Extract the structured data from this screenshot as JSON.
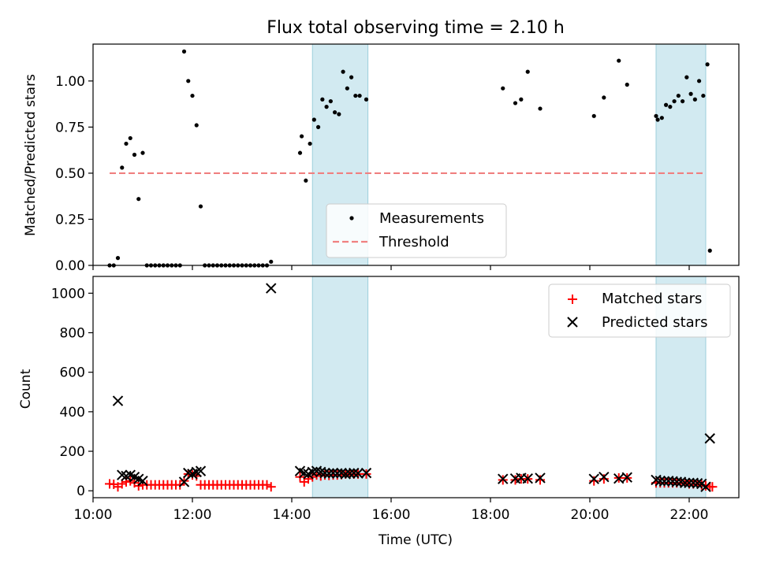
{
  "title": "Flux total observing time = 2.10 h",
  "chart_data": [
    {
      "type": "scatter",
      "ylabel": "Matched/Predicted stars",
      "xlabel": "",
      "xlim": [
        "10:00",
        "23:00"
      ],
      "ylim": [
        0,
        1.2
      ],
      "yticks": [
        0.0,
        0.25,
        0.5,
        0.75,
        1.0
      ],
      "ytick_labels": [
        "0.00",
        "0.25",
        "0.50",
        "0.75",
        "1.00"
      ],
      "grid": false,
      "legend": {
        "placement": "lower-center",
        "entries": [
          "Measurements",
          "Threshold"
        ]
      },
      "shaded_intervals": [
        [
          "14:25",
          "15:32"
        ],
        [
          "21:20",
          "22:20"
        ]
      ],
      "threshold": {
        "name": "Threshold",
        "value": 0.5,
        "x_start": "10:20",
        "x_end": "22:20",
        "color": "#f08080"
      },
      "series": [
        {
          "name": "Measurements",
          "color": "#000000",
          "points": [
            [
              "10:20",
              0.0
            ],
            [
              "10:25",
              0.0
            ],
            [
              "10:30",
              0.04
            ],
            [
              "10:35",
              0.53
            ],
            [
              "10:40",
              0.66
            ],
            [
              "10:45",
              0.69
            ],
            [
              "10:50",
              0.6
            ],
            [
              "10:55",
              0.36
            ],
            [
              "11:00",
              0.61
            ],
            [
              "11:05",
              0.0
            ],
            [
              "11:10",
              0.0
            ],
            [
              "11:15",
              0.0
            ],
            [
              "11:20",
              0.0
            ],
            [
              "11:25",
              0.0
            ],
            [
              "11:30",
              0.0
            ],
            [
              "11:35",
              0.0
            ],
            [
              "11:40",
              0.0
            ],
            [
              "11:45",
              0.0
            ],
            [
              "11:50",
              1.16
            ],
            [
              "11:55",
              1.0
            ],
            [
              "12:00",
              0.92
            ],
            [
              "12:05",
              0.76
            ],
            [
              "12:10",
              0.32
            ],
            [
              "12:15",
              0.0
            ],
            [
              "12:20",
              0.0
            ],
            [
              "12:25",
              0.0
            ],
            [
              "12:30",
              0.0
            ],
            [
              "12:35",
              0.0
            ],
            [
              "12:40",
              0.0
            ],
            [
              "12:45",
              0.0
            ],
            [
              "12:50",
              0.0
            ],
            [
              "12:55",
              0.0
            ],
            [
              "13:00",
              0.0
            ],
            [
              "13:05",
              0.0
            ],
            [
              "13:10",
              0.0
            ],
            [
              "13:15",
              0.0
            ],
            [
              "13:20",
              0.0
            ],
            [
              "13:25",
              0.0
            ],
            [
              "13:30",
              0.0
            ],
            [
              "13:35",
              0.02
            ],
            [
              "14:10",
              0.61
            ],
            [
              "14:12",
              0.7
            ],
            [
              "14:17",
              0.46
            ],
            [
              "14:22",
              0.66
            ],
            [
              "14:27",
              0.79
            ],
            [
              "14:32",
              0.75
            ],
            [
              "14:37",
              0.9
            ],
            [
              "14:42",
              0.86
            ],
            [
              "14:47",
              0.89
            ],
            [
              "14:52",
              0.83
            ],
            [
              "14:57",
              0.82
            ],
            [
              "15:02",
              1.05
            ],
            [
              "15:07",
              0.96
            ],
            [
              "15:12",
              1.02
            ],
            [
              "15:17",
              0.92
            ],
            [
              "15:22",
              0.92
            ],
            [
              "15:30",
              0.9
            ],
            [
              "18:15",
              0.96
            ],
            [
              "18:30",
              0.88
            ],
            [
              "18:37",
              0.9
            ],
            [
              "18:45",
              1.05
            ],
            [
              "19:00",
              0.85
            ],
            [
              "20:05",
              0.81
            ],
            [
              "20:17",
              0.91
            ],
            [
              "20:35",
              1.11
            ],
            [
              "20:45",
              0.98
            ],
            [
              "21:20",
              0.81
            ],
            [
              "21:22",
              0.79
            ],
            [
              "21:27",
              0.8
            ],
            [
              "21:32",
              0.87
            ],
            [
              "21:37",
              0.86
            ],
            [
              "21:42",
              0.89
            ],
            [
              "21:47",
              0.92
            ],
            [
              "21:52",
              0.89
            ],
            [
              "21:57",
              1.02
            ],
            [
              "22:02",
              0.93
            ],
            [
              "22:07",
              0.9
            ],
            [
              "22:12",
              1.0
            ],
            [
              "22:17",
              0.92
            ],
            [
              "22:22",
              1.09
            ],
            [
              "22:25",
              0.08
            ]
          ]
        }
      ]
    },
    {
      "type": "scatter",
      "ylabel": "Count",
      "xlabel": "Time (UTC)",
      "xlim": [
        "10:00",
        "23:00"
      ],
      "ylim": [
        -35,
        1085
      ],
      "yticks": [
        0,
        200,
        400,
        600,
        800,
        1000
      ],
      "ytick_labels": [
        "0",
        "200",
        "400",
        "600",
        "800",
        "1000"
      ],
      "xticks": [
        "10:00",
        "12:00",
        "14:00",
        "16:00",
        "18:00",
        "20:00",
        "22:00"
      ],
      "grid": false,
      "legend": {
        "placement": "top-right",
        "entries": [
          "Matched stars",
          "Predicted stars"
        ]
      },
      "shaded_intervals": [
        [
          "14:25",
          "15:32"
        ],
        [
          "21:20",
          "22:20"
        ]
      ],
      "series": [
        {
          "name": "Matched stars",
          "color": "#ff0000",
          "marker": "plus",
          "points": [
            [
              "10:20",
              35
            ],
            [
              "10:25",
              33
            ],
            [
              "10:30",
              20
            ],
            [
              "10:35",
              35
            ],
            [
              "10:40",
              45
            ],
            [
              "10:45",
              50
            ],
            [
              "10:50",
              40
            ],
            [
              "10:55",
              25
            ],
            [
              "11:00",
              30
            ],
            [
              "11:05",
              30
            ],
            [
              "11:10",
              30
            ],
            [
              "11:15",
              30
            ],
            [
              "11:20",
              30
            ],
            [
              "11:25",
              30
            ],
            [
              "11:30",
              30
            ],
            [
              "11:35",
              30
            ],
            [
              "11:40",
              30
            ],
            [
              "11:45",
              30
            ],
            [
              "11:50",
              50
            ],
            [
              "11:55",
              85
            ],
            [
              "12:00",
              80
            ],
            [
              "12:05",
              75
            ],
            [
              "12:10",
              30
            ],
            [
              "12:15",
              30
            ],
            [
              "12:20",
              30
            ],
            [
              "12:25",
              30
            ],
            [
              "12:30",
              30
            ],
            [
              "12:35",
              30
            ],
            [
              "12:40",
              30
            ],
            [
              "12:45",
              30
            ],
            [
              "12:50",
              30
            ],
            [
              "12:55",
              30
            ],
            [
              "13:00",
              30
            ],
            [
              "13:05",
              30
            ],
            [
              "13:10",
              30
            ],
            [
              "13:15",
              30
            ],
            [
              "13:20",
              30
            ],
            [
              "13:25",
              30
            ],
            [
              "13:30",
              30
            ],
            [
              "13:35",
              20
            ],
            [
              "14:10",
              70
            ],
            [
              "14:15",
              45
            ],
            [
              "14:20",
              60
            ],
            [
              "14:25",
              70
            ],
            [
              "14:30",
              80
            ],
            [
              "14:35",
              75
            ],
            [
              "14:40",
              80
            ],
            [
              "14:45",
              78
            ],
            [
              "14:50",
              80
            ],
            [
              "14:55",
              80
            ],
            [
              "15:00",
              82
            ],
            [
              "15:05",
              85
            ],
            [
              "15:10",
              85
            ],
            [
              "15:15",
              85
            ],
            [
              "15:20",
              85
            ],
            [
              "15:30",
              85
            ],
            [
              "18:15",
              55
            ],
            [
              "18:30",
              55
            ],
            [
              "18:37",
              60
            ],
            [
              "18:45",
              60
            ],
            [
              "19:00",
              55
            ],
            [
              "20:05",
              50
            ],
            [
              "20:17",
              60
            ],
            [
              "20:35",
              65
            ],
            [
              "20:45",
              65
            ],
            [
              "21:20",
              40
            ],
            [
              "21:25",
              40
            ],
            [
              "21:30",
              40
            ],
            [
              "21:35",
              40
            ],
            [
              "21:40",
              40
            ],
            [
              "21:45",
              40
            ],
            [
              "21:50",
              40
            ],
            [
              "21:55",
              40
            ],
            [
              "22:00",
              35
            ],
            [
              "22:05",
              35
            ],
            [
              "22:10",
              35
            ],
            [
              "22:15",
              30
            ],
            [
              "22:20",
              25
            ],
            [
              "22:25",
              20
            ],
            [
              "22:28",
              20
            ]
          ]
        },
        {
          "name": "Predicted stars",
          "color": "#000000",
          "marker": "x",
          "points": [
            [
              "10:30",
              455
            ],
            [
              "10:35",
              80
            ],
            [
              "10:40",
              75
            ],
            [
              "10:45",
              80
            ],
            [
              "10:50",
              70
            ],
            [
              "10:55",
              60
            ],
            [
              "11:00",
              50
            ],
            [
              "11:50",
              45
            ],
            [
              "11:55",
              90
            ],
            [
              "12:00",
              85
            ],
            [
              "12:05",
              95
            ],
            [
              "12:10",
              100
            ],
            [
              "13:35",
              1025
            ],
            [
              "14:10",
              100
            ],
            [
              "14:15",
              90
            ],
            [
              "14:20",
              85
            ],
            [
              "14:25",
              95
            ],
            [
              "14:30",
              100
            ],
            [
              "14:35",
              95
            ],
            [
              "14:40",
              90
            ],
            [
              "14:45",
              88
            ],
            [
              "14:50",
              90
            ],
            [
              "14:55",
              88
            ],
            [
              "15:00",
              90
            ],
            [
              "15:05",
              85
            ],
            [
              "15:10",
              88
            ],
            [
              "15:15",
              90
            ],
            [
              "15:20",
              88
            ],
            [
              "15:30",
              90
            ],
            [
              "18:15",
              60
            ],
            [
              "18:30",
              62
            ],
            [
              "18:37",
              65
            ],
            [
              "18:45",
              62
            ],
            [
              "19:00",
              65
            ],
            [
              "20:05",
              60
            ],
            [
              "20:17",
              70
            ],
            [
              "20:35",
              62
            ],
            [
              "20:45",
              68
            ],
            [
              "21:20",
              55
            ],
            [
              "21:25",
              50
            ],
            [
              "21:30",
              48
            ],
            [
              "21:35",
              50
            ],
            [
              "21:40",
              48
            ],
            [
              "21:45",
              45
            ],
            [
              "21:50",
              45
            ],
            [
              "21:55",
              40
            ],
            [
              "22:00",
              40
            ],
            [
              "22:05",
              40
            ],
            [
              "22:10",
              38
            ],
            [
              "22:15",
              35
            ],
            [
              "22:20",
              20
            ],
            [
              "22:25",
              265
            ]
          ]
        }
      ]
    }
  ]
}
